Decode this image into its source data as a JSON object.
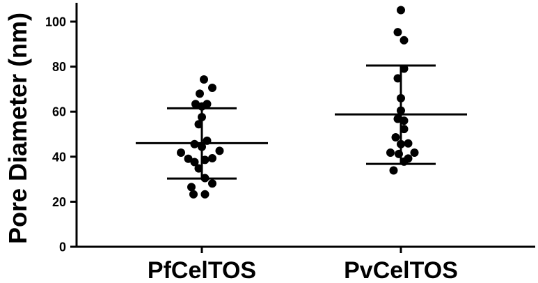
{
  "chart_data": {
    "type": "scatter",
    "title": "",
    "ylabel": "Pore Diameter (nm)",
    "xlabel": "",
    "ylim": [
      0,
      107
    ],
    "yticks": [
      0,
      20,
      40,
      60,
      80,
      100
    ],
    "grid": false,
    "categories": [
      "PfCelTOS",
      "PvCelTOS"
    ],
    "series": [
      {
        "category": "PfCelTOS",
        "mean": 46,
        "sd_upper": 61.5,
        "sd_lower": 30.3,
        "points": [
          {
            "dx": 0.02,
            "y": 74.3
          },
          {
            "dx": 0.1,
            "y": 70.6
          },
          {
            "dx": -0.02,
            "y": 68.0
          },
          {
            "dx": -0.06,
            "y": 63.4
          },
          {
            "dx": 0.05,
            "y": 63.4
          },
          {
            "dx": 0.0,
            "y": 62.3
          },
          {
            "dx": 0.0,
            "y": 57.6
          },
          {
            "dx": -0.03,
            "y": 54.4
          },
          {
            "dx": 0.05,
            "y": 47.1
          },
          {
            "dx": -0.07,
            "y": 45.6
          },
          {
            "dx": 0.0,
            "y": 44.4
          },
          {
            "dx": -0.2,
            "y": 41.8
          },
          {
            "dx": 0.17,
            "y": 42.6
          },
          {
            "dx": -0.13,
            "y": 39.1
          },
          {
            "dx": 0.1,
            "y": 39.3
          },
          {
            "dx": 0.03,
            "y": 38.6
          },
          {
            "dx": -0.07,
            "y": 37.6
          },
          {
            "dx": -0.03,
            "y": 34.8
          },
          {
            "dx": 0.03,
            "y": 30.5
          },
          {
            "dx": 0.1,
            "y": 28.1
          },
          {
            "dx": -0.1,
            "y": 26.5
          },
          {
            "dx": -0.08,
            "y": 23.3
          },
          {
            "dx": 0.03,
            "y": 23.3
          }
        ]
      },
      {
        "category": "PvCelTOS",
        "mean": 58.8,
        "sd_upper": 80.5,
        "sd_lower": 36.8,
        "points": [
          {
            "dx": 0.0,
            "y": 105.1
          },
          {
            "dx": -0.03,
            "y": 95.3
          },
          {
            "dx": 0.03,
            "y": 91.7
          },
          {
            "dx": 0.03,
            "y": 79.1
          },
          {
            "dx": -0.03,
            "y": 74.8
          },
          {
            "dx": 0.0,
            "y": 66.0
          },
          {
            "dx": 0.0,
            "y": 60.5
          },
          {
            "dx": -0.03,
            "y": 56.8
          },
          {
            "dx": 0.03,
            "y": 56.0
          },
          {
            "dx": 0.03,
            "y": 52.3
          },
          {
            "dx": -0.05,
            "y": 48.6
          },
          {
            "dx": 0.0,
            "y": 45.6
          },
          {
            "dx": 0.07,
            "y": 45.9
          },
          {
            "dx": -0.1,
            "y": 41.8
          },
          {
            "dx": 0.13,
            "y": 41.8
          },
          {
            "dx": -0.02,
            "y": 41.2
          },
          {
            "dx": 0.07,
            "y": 39.2
          },
          {
            "dx": 0.03,
            "y": 37.8
          },
          {
            "dx": -0.07,
            "y": 33.9
          }
        ]
      }
    ]
  }
}
